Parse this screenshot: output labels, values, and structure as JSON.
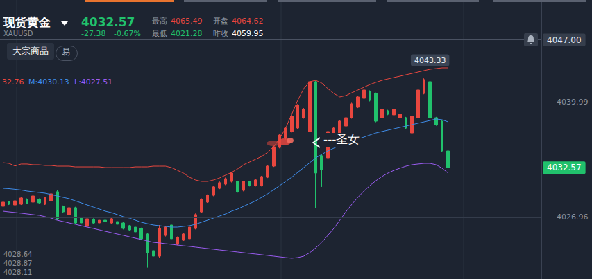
{
  "header": {
    "title": "现货黄金",
    "symbol": "XAUUSD",
    "price": "4032.57",
    "change": "-27.38",
    "change_pct": "-0.67%",
    "stats": [
      {
        "label": "最高",
        "value": "4065.49",
        "color": "#e8473f"
      },
      {
        "label": "开盘",
        "value": "4064.62",
        "color": "#e8473f"
      },
      {
        "label": "最低",
        "value": "4021.28",
        "color": "#21c16c"
      },
      {
        "label": "昨收",
        "value": "4059.95",
        "color": "#ffffff"
      }
    ],
    "tag": "大宗商品",
    "button": "易"
  },
  "indicators": [
    {
      "text": "32.76",
      "color": "#e8473f"
    },
    {
      "text": "M:4030.13",
      "color": "#3f8ce8"
    },
    {
      "text": "L:4027.51",
      "color": "#9a5cf0"
    }
  ],
  "side_list": [
    "4028.64",
    "4028.87",
    "4028.11"
  ],
  "chart_data": {
    "type": "candlestick",
    "categories": [
      null,
      null,
      null,
      null,
      null,
      null,
      null,
      null,
      null,
      null,
      null,
      null,
      null,
      null,
      null,
      null,
      null,
      null,
      null,
      null,
      null,
      null,
      null,
      null,
      null,
      null,
      null,
      null,
      null,
      null,
      null,
      null,
      null,
      null,
      null,
      null,
      null,
      null,
      null,
      null,
      null,
      null,
      null,
      null,
      null,
      null,
      null,
      null,
      null,
      null,
      null,
      null,
      null,
      null,
      null,
      null,
      null,
      null,
      null,
      null,
      null,
      null,
      null,
      null,
      null,
      null,
      null,
      null,
      null,
      null,
      null,
      null,
      null,
      null,
      null,
      null,
      null,
      null,
      null,
      null,
      null,
      null,
      null,
      null,
      null,
      null,
      null,
      null,
      null,
      null
    ],
    "ylim": [
      4020,
      4051.5
    ],
    "yticks": [
      4026.96,
      4039.99
    ],
    "grid": true,
    "tick_labels": "y",
    "series": [
      {
        "type": "candlestick",
        "color": {
          "up": "#e8473f",
          "down": "#21c16c"
        },
        "values": [
          [
            4028.21,
            4028.68,
            4028.05,
            4028.83
          ],
          [
            4028.76,
            4028.44,
            4028.36,
            4028.83
          ],
          [
            4028.36,
            4028.83,
            4028.28,
            4028.95
          ],
          [
            4028.44,
            4029.15,
            4028.36,
            4029.25
          ],
          [
            4028.99,
            4028.52,
            4028.44,
            4029.1
          ],
          [
            4028.68,
            4029.38,
            4028.6,
            4029.5
          ],
          [
            4028.99,
            4028.6,
            4028.52,
            4029.1
          ],
          [
            4028.44,
            4029.22,
            4028.36,
            4029.3
          ],
          [
            4028.83,
            4029.62,
            4028.75,
            4029.77
          ],
          [
            4029.85,
            4026.8,
            4026.64,
            4030.01
          ],
          [
            4028.21,
            4027.58,
            4027.45,
            4028.3
          ],
          [
            4027.27,
            4028.05,
            4027.15,
            4028.15
          ],
          [
            4028.05,
            4026.33,
            4026.2,
            4028.15
          ],
          [
            4026.88,
            4026.33,
            4026.25,
            4027.0
          ],
          [
            4025.94,
            4026.8,
            4025.85,
            4026.9
          ],
          [
            4026.72,
            4026.33,
            4026.25,
            4026.85
          ],
          [
            4026.33,
            4026.64,
            4026.25,
            4026.88
          ],
          [
            4026.64,
            4026.49,
            4026.4,
            4026.75
          ],
          [
            4026.33,
            4026.8,
            4026.25,
            4026.9
          ],
          [
            4026.49,
            4026.18,
            4026.1,
            4026.6
          ],
          [
            4026.33,
            4025.71,
            4025.6,
            4026.45
          ],
          [
            4026.02,
            4025.55,
            4025.45,
            4026.1
          ],
          [
            4025.86,
            4025.32,
            4025.2,
            4025.95
          ],
          [
            4025.71,
            4024.54,
            4024.4,
            4025.8
          ],
          [
            4025.08,
            4022.97,
            4021.28,
            4025.2
          ],
          [
            4023.21,
            4022.58,
            4021.8,
            4023.3
          ],
          [
            4022.58,
            4025.71,
            4022.42,
            4026.1
          ],
          [
            4024.93,
            4025.86,
            4024.8,
            4025.95
          ],
          [
            4026.1,
            4024.54,
            4024.4,
            4026.2
          ],
          [
            4023.91,
            4024.69,
            4023.8,
            4024.8
          ],
          [
            4024.38,
            4025.08,
            4024.3,
            4025.2
          ],
          [
            4024.54,
            4025.86,
            4024.45,
            4025.95
          ],
          [
            4025.71,
            4027.27,
            4025.6,
            4027.4
          ],
          [
            4027.58,
            4028.99,
            4027.45,
            4029.1
          ],
          [
            4028.68,
            4029.46,
            4028.6,
            4029.55
          ],
          [
            4029.46,
            4030.4,
            4029.35,
            4030.5
          ],
          [
            4030.24,
            4030.87,
            4030.15,
            4031.0
          ],
          [
            4030.71,
            4031.33,
            4030.6,
            4031.45
          ],
          [
            4031.02,
            4031.96,
            4030.9,
            4032.05
          ],
          [
            4031.02,
            4029.85,
            4029.75,
            4031.1
          ],
          [
            4030.01,
            4031.02,
            4029.9,
            4031.1
          ],
          [
            4031.02,
            4030.55,
            4030.45,
            4031.1
          ],
          [
            4030.55,
            4031.18,
            4030.45,
            4031.3
          ],
          [
            4030.55,
            4031.57,
            4030.45,
            4031.65
          ],
          [
            4031.49,
            4032.74,
            4031.4,
            4032.85
          ],
          [
            4032.74,
            4034.93,
            4032.65,
            4035.05
          ],
          [
            4034.85,
            4036.26,
            4034.75,
            4036.4
          ],
          [
            4035.87,
            4037.04,
            4035.75,
            4037.15
          ],
          [
            4036.65,
            4038.37,
            4036.55,
            4038.5
          ],
          [
            4037.04,
            4039.62,
            4036.95,
            4039.75
          ],
          [
            4038.21,
            4039.15,
            4038.1,
            4039.3
          ],
          [
            4036.65,
            4042.28,
            4036.55,
            4042.51
          ],
          [
            4042.28,
            4031.96,
            4028.05,
            4042.4
          ],
          [
            4033.91,
            4032.35,
            4030.4,
            4034.05
          ],
          [
            4033.68,
            4036.65,
            4033.55,
            4036.75
          ],
          [
            4035.48,
            4037.04,
            4035.35,
            4037.15
          ],
          [
            4036.26,
            4037.82,
            4036.15,
            4037.95
          ],
          [
            4037.27,
            4038.21,
            4037.15,
            4038.35
          ],
          [
            4038.21,
            4039.78,
            4038.1,
            4039.9
          ],
          [
            4039.39,
            4040.56,
            4039.3,
            4040.7
          ],
          [
            4040.4,
            4041.34,
            4040.3,
            4041.5
          ],
          [
            4041.18,
            4040.17,
            4040.05,
            4041.3
          ],
          [
            4040.95,
            4037.82,
            4037.7,
            4041.05
          ],
          [
            4038.21,
            4039.15,
            4038.1,
            4039.25
          ],
          [
            4038.99,
            4038.6,
            4038.5,
            4039.1
          ],
          [
            4038.53,
            4039.15,
            4038.45,
            4039.25
          ],
          [
            4038.21,
            4038.6,
            4038.1,
            4038.7
          ],
          [
            4038.21,
            4037.04,
            4036.95,
            4038.3
          ],
          [
            4036.49,
            4038.37,
            4036.4,
            4038.5
          ],
          [
            4038.21,
            4041.34,
            4038.1,
            4041.45
          ],
          [
            4040.95,
            4042.51,
            4040.85,
            4042.65
          ],
          [
            4042.28,
            4038.21,
            4038.1,
            4043.33
          ],
          [
            4038.21,
            4037.43,
            4037.3,
            4038.3
          ],
          [
            4037.82,
            4034.46,
            4034.35,
            4037.9
          ],
          [
            4034.46,
            4032.57,
            4032.45,
            4034.55
          ],
          null,
          null,
          null,
          null,
          null,
          null,
          null,
          null,
          null,
          null,
          null,
          null,
          null,
          null,
          null
        ]
      },
      {
        "type": "line",
        "color": "#e8473f",
        "values": [
          4033.13,
          4033.05,
          4032.76,
          4032.98,
          4032.98,
          4032.9,
          4032.9,
          4032.82,
          4032.82,
          4032.74,
          4032.74,
          4032.74,
          4032.66,
          4032.66,
          4032.66,
          4032.66,
          4032.66,
          4032.58,
          4032.58,
          4032.58,
          4032.58,
          4032.58,
          4032.66,
          4032.66,
          4032.66,
          4032.74,
          4032.74,
          4032.74,
          4032.58,
          4032.27,
          4031.96,
          4031.49,
          4031.18,
          4031.02,
          4031.02,
          4031.18,
          4031.41,
          4031.73,
          4032.04,
          4032.43,
          4032.9,
          4033.21,
          4033.52,
          4033.84,
          4034.3,
          4034.93,
          4035.87,
          4037.04,
          4038.6,
          4040.17,
          4041.5,
          4042.28,
          4042.43,
          4042.12,
          4041.5,
          4040.95,
          4040.56,
          4040.71,
          4041.03,
          4041.34,
          4041.65,
          4041.96,
          4042.2,
          4042.43,
          4042.59,
          4042.75,
          4042.9,
          4043.06,
          4043.21,
          4043.37,
          4043.53,
          4043.68,
          4043.76,
          4043.84,
          4043.84,
          null,
          null,
          null,
          null,
          null,
          null,
          null,
          null,
          null,
          null,
          null,
          null,
          null,
          null,
          null
        ]
      },
      {
        "type": "line",
        "color": "#3f8ce8",
        "values": [
          4030.24,
          4030.2,
          4030.13,
          4030.05,
          4029.93,
          4029.85,
          4029.77,
          4029.69,
          4029.54,
          4029.38,
          4029.22,
          4029.07,
          4028.83,
          4028.6,
          4028.36,
          4028.13,
          4027.9,
          4027.66,
          4027.5,
          4027.27,
          4027.04,
          4026.88,
          4026.64,
          4026.41,
          4026.25,
          4026.1,
          4026.02,
          4025.94,
          4025.86,
          4025.86,
          4025.94,
          4026.02,
          4026.18,
          4026.41,
          4026.64,
          4026.88,
          4027.11,
          4027.35,
          4027.66,
          4027.9,
          4028.21,
          4028.52,
          4028.83,
          4029.22,
          4029.62,
          4030.08,
          4030.55,
          4031.02,
          4031.49,
          4032.04,
          4032.58,
          4033.13,
          4033.68,
          4034.07,
          4034.46,
          4034.77,
          4035.09,
          4035.32,
          4035.56,
          4035.79,
          4036.02,
          4036.26,
          4036.49,
          4036.65,
          4036.81,
          4036.96,
          4037.12,
          4037.27,
          4037.43,
          4037.59,
          4037.74,
          4037.9,
          4038.06,
          4037.98,
          4037.74,
          null,
          null,
          null,
          null,
          null,
          null,
          null,
          null,
          null,
          null,
          null,
          null,
          null,
          null,
          null
        ]
      },
      {
        "type": "line",
        "color": "#9a5cf0",
        "values": [
          4027.66,
          4027.58,
          4027.51,
          4027.43,
          4027.35,
          4027.27,
          4027.19,
          4027.04,
          4026.88,
          4026.64,
          4026.49,
          4026.33,
          4026.18,
          4026.02,
          4025.86,
          4025.71,
          4025.55,
          4025.39,
          4025.24,
          4025.08,
          4024.93,
          4024.77,
          4024.61,
          4024.46,
          4024.3,
          4024.14,
          4024.07,
          4023.99,
          4023.91,
          4023.83,
          4023.75,
          4023.68,
          4023.6,
          4023.52,
          4023.44,
          4023.36,
          4023.28,
          4023.21,
          4023.13,
          4023.05,
          4022.97,
          4022.89,
          4022.82,
          4022.74,
          4022.66,
          4022.58,
          4022.5,
          4022.42,
          4022.35,
          4022.42,
          4022.58,
          4022.97,
          4023.52,
          4024.14,
          4024.93,
          4025.71,
          4026.64,
          4027.58,
          4028.44,
          4029.22,
          4029.93,
          4030.55,
          4031.1,
          4031.57,
          4031.96,
          4032.27,
          4032.51,
          4032.74,
          4032.9,
          4032.98,
          4033.05,
          4033.05,
          4032.9,
          4032.51,
          4031.96,
          null,
          null,
          null,
          null,
          null,
          null,
          null,
          null,
          null,
          null,
          null,
          null,
          null,
          null,
          null
        ]
      }
    ],
    "price_line": {
      "value": 4032.57,
      "label": "4032.57",
      "color": "#21c16c"
    },
    "alert_line": {
      "value": 4047,
      "label": "4047.00"
    },
    "max_label": {
      "value": 4043.33,
      "label": "4043.33"
    },
    "annotations": [
      {
        "text": "---圣女"
      }
    ]
  }
}
